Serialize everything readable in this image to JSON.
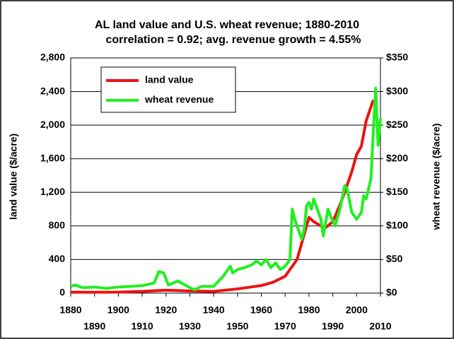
{
  "chart_data": {
    "type": "line",
    "title": "AL land value and U.S. wheat revenue; 1880-2010",
    "subtitle": "correlation = 0.92; avg. revenue growth = 4.55%",
    "y_label": "land value ($/acre)",
    "y2_label": "wheat revenue ($/acre)",
    "xlim": [
      1880,
      2010
    ],
    "xticks": [
      1880,
      1890,
      1900,
      1910,
      1920,
      1930,
      1940,
      1950,
      1960,
      1970,
      1980,
      1990,
      2000,
      2010
    ],
    "ylim": [
      0,
      2800
    ],
    "yticks": [
      0,
      400,
      800,
      {
        "value": 1200,
        "label": "1,200"
      },
      {
        "value": 1600,
        "label": "1,600"
      },
      {
        "value": 2000,
        "label": "2,000"
      },
      {
        "value": 2400,
        "label": "2,400"
      },
      {
        "value": 2800,
        "label": "2,800"
      }
    ],
    "y2lim": [
      0,
      350
    ],
    "y2ticks": [
      {
        "value": 0,
        "label": "$0"
      },
      {
        "value": 50,
        "label": "$50"
      },
      {
        "value": 100,
        "label": "$100"
      },
      {
        "value": 150,
        "label": "$150"
      },
      {
        "value": 200,
        "label": "$200"
      },
      {
        "value": 250,
        "label": "$250"
      },
      {
        "value": 300,
        "label": "$300"
      },
      {
        "value": 350,
        "label": "$350"
      }
    ],
    "grid": true,
    "legend": "upper left",
    "series": [
      {
        "name": "land value",
        "color": "#ee1111",
        "x": [
          1880,
          1900,
          1910,
          1920,
          1930,
          1940,
          1950,
          1960,
          1965,
          1970,
          1975,
          1978,
          1980,
          1982,
          1985,
          1987,
          1990,
          1993,
          1995,
          1998,
          2000,
          2002,
          2004,
          2007
        ],
        "values": [
          10,
          12,
          20,
          35,
          25,
          20,
          50,
          90,
          130,
          200,
          400,
          700,
          900,
          850,
          800,
          780,
          850,
          1050,
          1200,
          1450,
          1650,
          1750,
          2050,
          2300
        ]
      },
      {
        "name": "wheat revenue",
        "color": "#22ee22",
        "axis": "y2",
        "x": [
          1880,
          1882,
          1885,
          1890,
          1895,
          1900,
          1905,
          1910,
          1915,
          1917,
          1919,
          1921,
          1925,
          1930,
          1932,
          1935,
          1940,
          1944,
          1947,
          1948,
          1950,
          1953,
          1956,
          1958,
          1960,
          1962,
          1964,
          1966,
          1968,
          1970,
          1972,
          1973,
          1974,
          1976,
          1977,
          1978,
          1979,
          1980,
          1981,
          1982,
          1983,
          1985,
          1986,
          1988,
          1989,
          1991,
          1993,
          1995,
          1996,
          1998,
          2000,
          2002,
          2003,
          2004,
          2006,
          2007,
          2008,
          2009,
          2010
        ],
        "values": [
          10,
          12,
          8,
          9,
          7,
          9,
          10,
          11,
          15,
          32,
          30,
          12,
          18,
          8,
          5,
          10,
          10,
          25,
          40,
          30,
          35,
          38,
          42,
          48,
          42,
          50,
          38,
          45,
          35,
          40,
          50,
          125,
          110,
          90,
          80,
          95,
          130,
          135,
          125,
          140,
          130,
          110,
          85,
          125,
          115,
          100,
          125,
          160,
          155,
          120,
          110,
          120,
          145,
          140,
          170,
          240,
          305,
          220,
          260
        ]
      }
    ]
  }
}
